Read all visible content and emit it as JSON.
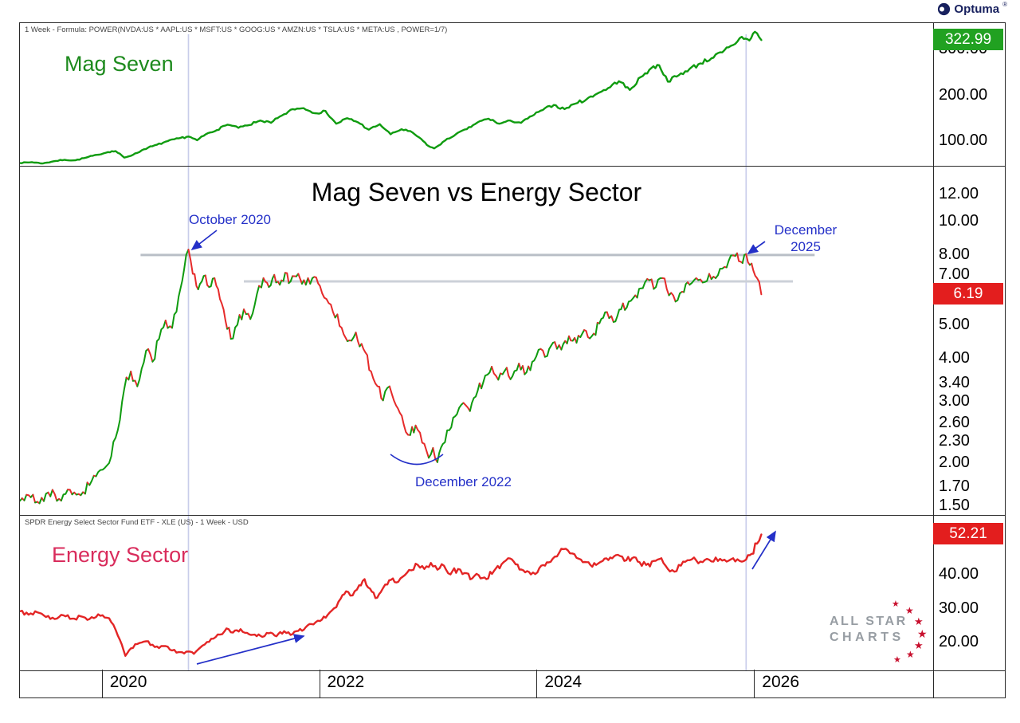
{
  "header": {
    "optuma_logo": "Optuma",
    "registered": "®"
  },
  "panels": {
    "mag7_label": "Mag Seven",
    "ratio_title": "Mag Seven vs Energy Sector",
    "energy_label": "Energy Sector",
    "mag7_header": "1 Week - Formula: POWER(NVDA:US * AAPL:US * MSFT:US * GOOG:US * AMZN:US * TSLA:US * META:US , POWER=1/7)",
    "xle_header": "SPDR Energy Select Sector Fund ETF - XLE (US) - 1 Week - USD"
  },
  "badges": {
    "mag7": "322.99",
    "ratio": "6.19",
    "xle": "52.21"
  },
  "annotations": {
    "october_2020": "October 2020",
    "december_2025": "December 2025",
    "december_2022": "December 2022"
  },
  "watermark": {
    "line1": "ALL STAR",
    "line2": "CHARTS"
  },
  "colors": {
    "mag7_line": "#0f9b0f",
    "xle_line": "#e32525",
    "up": "#0f9b0f",
    "down": "#e62a2a",
    "annotation": "#2430c8",
    "grid": "#c9cdea",
    "badge_green": "#21a121",
    "badge_red": "#e31e1e",
    "title_green": "#1d8a1d",
    "title_pink": "#d92c5c",
    "star_red": "#c8102e"
  },
  "x_axis": {
    "ticks": [
      2020,
      2022,
      2024,
      2026
    ],
    "labels": [
      "2020",
      "2022",
      "2024",
      "2026"
    ]
  },
  "gridlines": [
    2020.79,
    2025.92
  ],
  "chart_data": [
    {
      "type": "line",
      "name": "mag-seven",
      "title": "Mag Seven",
      "scale": "linear",
      "xlim": [
        2019.24,
        2027.64
      ],
      "ylim": [
        48,
        360
      ],
      "color": "#0f9b0f",
      "last_value": 322.99,
      "yticks": [
        {
          "v": 300,
          "label": "300.00"
        },
        {
          "v": 200,
          "label": "200.00"
        },
        {
          "v": 100,
          "label": "100.00"
        }
      ],
      "points": [
        [
          2019.24,
          54
        ],
        [
          2019.35,
          56
        ],
        [
          2019.45,
          53
        ],
        [
          2019.55,
          58
        ],
        [
          2019.65,
          61
        ],
        [
          2019.75,
          60
        ],
        [
          2019.85,
          66
        ],
        [
          2019.95,
          72
        ],
        [
          2020.05,
          78
        ],
        [
          2020.12,
          80
        ],
        [
          2020.2,
          66
        ],
        [
          2020.28,
          72
        ],
        [
          2020.38,
          84
        ],
        [
          2020.5,
          94
        ],
        [
          2020.6,
          102
        ],
        [
          2020.7,
          108
        ],
        [
          2020.79,
          112
        ],
        [
          2020.87,
          104
        ],
        [
          2020.95,
          117
        ],
        [
          2021.05,
          126
        ],
        [
          2021.15,
          138
        ],
        [
          2021.25,
          131
        ],
        [
          2021.35,
          137
        ],
        [
          2021.45,
          147
        ],
        [
          2021.55,
          142
        ],
        [
          2021.65,
          158
        ],
        [
          2021.75,
          172
        ],
        [
          2021.85,
          174
        ],
        [
          2021.95,
          163
        ],
        [
          2022.05,
          168
        ],
        [
          2022.15,
          140
        ],
        [
          2022.25,
          152
        ],
        [
          2022.35,
          143
        ],
        [
          2022.45,
          127
        ],
        [
          2022.55,
          139
        ],
        [
          2022.65,
          117
        ],
        [
          2022.75,
          128
        ],
        [
          2022.85,
          121
        ],
        [
          2022.95,
          102
        ],
        [
          2023.0,
          91
        ],
        [
          2023.05,
          86
        ],
        [
          2023.15,
          103
        ],
        [
          2023.25,
          117
        ],
        [
          2023.35,
          128
        ],
        [
          2023.45,
          143
        ],
        [
          2023.55,
          151
        ],
        [
          2023.65,
          140
        ],
        [
          2023.75,
          147
        ],
        [
          2023.85,
          142
        ],
        [
          2023.95,
          157
        ],
        [
          2024.05,
          170
        ],
        [
          2024.15,
          181
        ],
        [
          2024.25,
          172
        ],
        [
          2024.35,
          184
        ],
        [
          2024.45,
          193
        ],
        [
          2024.55,
          206
        ],
        [
          2024.65,
          218
        ],
        [
          2024.75,
          233
        ],
        [
          2024.85,
          214
        ],
        [
          2024.95,
          242
        ],
        [
          2025.05,
          262
        ],
        [
          2025.12,
          268
        ],
        [
          2025.2,
          232
        ],
        [
          2025.3,
          246
        ],
        [
          2025.4,
          260
        ],
        [
          2025.5,
          272
        ],
        [
          2025.6,
          283
        ],
        [
          2025.7,
          296
        ],
        [
          2025.8,
          312
        ],
        [
          2025.88,
          330
        ],
        [
          2025.95,
          322
        ],
        [
          2026.0,
          341
        ],
        [
          2026.06,
          322.99
        ]
      ]
    },
    {
      "type": "line",
      "name": "mag-seven-vs-energy-ratio",
      "title": "Mag Seven vs Energy Sector",
      "scale": "log",
      "mode": "updown",
      "xlim": [
        2019.24,
        2027.64
      ],
      "ylim": [
        1.42,
        14.6
      ],
      "colors": {
        "up": "#0f9b0f",
        "down": "#e62a2a"
      },
      "last_value": 6.19,
      "yticks": [
        {
          "v": 12,
          "label": "12.00"
        },
        {
          "v": 10,
          "label": "10.00"
        },
        {
          "v": 8,
          "label": "8.00"
        },
        {
          "v": 7,
          "label": "7.00"
        },
        {
          "v": 6,
          "label": "6.00"
        },
        {
          "v": 5,
          "label": "5.00"
        },
        {
          "v": 4,
          "label": "4.00"
        },
        {
          "v": 3.4,
          "label": "3.40"
        },
        {
          "v": 3,
          "label": "3.00"
        },
        {
          "v": 2.6,
          "label": "2.60"
        },
        {
          "v": 2.3,
          "label": "2.30"
        },
        {
          "v": 2,
          "label": "2.00"
        },
        {
          "v": 1.7,
          "label": "1.70"
        },
        {
          "v": 1.5,
          "label": "1.50"
        }
      ],
      "hlines": [
        {
          "value": 8.05,
          "x1": 2020.35,
          "x2": 2026.55,
          "color": "#b9bfc7",
          "width": 3
        },
        {
          "value": 6.75,
          "x1": 2021.3,
          "x2": 2026.35,
          "color": "#ccd1d8",
          "width": 3
        }
      ],
      "points": [
        [
          2019.24,
          1.56
        ],
        [
          2019.32,
          1.62
        ],
        [
          2019.4,
          1.55
        ],
        [
          2019.5,
          1.65
        ],
        [
          2019.6,
          1.58
        ],
        [
          2019.7,
          1.68
        ],
        [
          2019.8,
          1.62
        ],
        [
          2019.9,
          1.78
        ],
        [
          2020.0,
          1.92
        ],
        [
          2020.08,
          2.1
        ],
        [
          2020.14,
          2.5
        ],
        [
          2020.2,
          3.3
        ],
        [
          2020.26,
          3.7
        ],
        [
          2020.32,
          3.35
        ],
        [
          2020.4,
          4.25
        ],
        [
          2020.46,
          3.95
        ],
        [
          2020.52,
          4.6
        ],
        [
          2020.58,
          5.2
        ],
        [
          2020.64,
          4.95
        ],
        [
          2020.7,
          6.1
        ],
        [
          2020.75,
          7.3
        ],
        [
          2020.79,
          8.35
        ],
        [
          2020.83,
          7.1
        ],
        [
          2020.88,
          6.4
        ],
        [
          2020.93,
          7.0
        ],
        [
          2020.98,
          6.5
        ],
        [
          2021.03,
          6.9
        ],
        [
          2021.08,
          6.0
        ],
        [
          2021.13,
          5.2
        ],
        [
          2021.18,
          4.6
        ],
        [
          2021.24,
          5.05
        ],
        [
          2021.3,
          5.6
        ],
        [
          2021.36,
          5.25
        ],
        [
          2021.42,
          6.2
        ],
        [
          2021.48,
          6.9
        ],
        [
          2021.53,
          6.5
        ],
        [
          2021.58,
          7.05
        ],
        [
          2021.63,
          6.6
        ],
        [
          2021.68,
          7.15
        ],
        [
          2021.73,
          6.75
        ],
        [
          2021.8,
          7.1
        ],
        [
          2021.87,
          6.6
        ],
        [
          2021.93,
          6.9
        ],
        [
          2022.0,
          6.55
        ],
        [
          2022.06,
          6.0
        ],
        [
          2022.12,
          5.5
        ],
        [
          2022.2,
          4.95
        ],
        [
          2022.27,
          4.55
        ],
        [
          2022.33,
          4.8
        ],
        [
          2022.4,
          4.3
        ],
        [
          2022.47,
          3.7
        ],
        [
          2022.53,
          3.35
        ],
        [
          2022.58,
          3.05
        ],
        [
          2022.64,
          3.35
        ],
        [
          2022.7,
          2.95
        ],
        [
          2022.77,
          2.6
        ],
        [
          2022.83,
          2.42
        ],
        [
          2022.88,
          2.58
        ],
        [
          2022.94,
          2.3
        ],
        [
          2023.0,
          2.08
        ],
        [
          2023.04,
          2.22
        ],
        [
          2023.08,
          2.02
        ],
        [
          2023.13,
          2.28
        ],
        [
          2023.19,
          2.5
        ],
        [
          2023.26,
          2.78
        ],
        [
          2023.32,
          3.0
        ],
        [
          2023.38,
          2.84
        ],
        [
          2023.45,
          3.25
        ],
        [
          2023.52,
          3.6
        ],
        [
          2023.58,
          3.82
        ],
        [
          2023.64,
          3.5
        ],
        [
          2023.7,
          3.72
        ],
        [
          2023.77,
          3.58
        ],
        [
          2023.83,
          3.9
        ],
        [
          2023.9,
          3.68
        ],
        [
          2023.97,
          3.98
        ],
        [
          2024.03,
          4.3
        ],
        [
          2024.09,
          4.1
        ],
        [
          2024.16,
          4.5
        ],
        [
          2024.22,
          4.28
        ],
        [
          2024.29,
          4.68
        ],
        [
          2024.36,
          4.48
        ],
        [
          2024.43,
          4.88
        ],
        [
          2024.5,
          4.68
        ],
        [
          2024.57,
          5.1
        ],
        [
          2024.64,
          5.5
        ],
        [
          2024.7,
          5.15
        ],
        [
          2024.77,
          5.6
        ],
        [
          2024.84,
          5.9
        ],
        [
          2024.9,
          6.15
        ],
        [
          2024.97,
          6.45
        ],
        [
          2025.03,
          6.8
        ],
        [
          2025.09,
          6.5
        ],
        [
          2025.15,
          6.9
        ],
        [
          2025.21,
          6.15
        ],
        [
          2025.27,
          5.9
        ],
        [
          2025.33,
          6.3
        ],
        [
          2025.4,
          6.6
        ],
        [
          2025.46,
          6.9
        ],
        [
          2025.52,
          6.7
        ],
        [
          2025.58,
          7.1
        ],
        [
          2025.64,
          6.9
        ],
        [
          2025.7,
          7.35
        ],
        [
          2025.76,
          7.75
        ],
        [
          2025.82,
          8.0
        ],
        [
          2025.87,
          7.7
        ],
        [
          2025.92,
          8.1
        ],
        [
          2025.97,
          7.6
        ],
        [
          2026.02,
          6.9
        ],
        [
          2026.06,
          6.19
        ]
      ]
    },
    {
      "type": "line",
      "name": "energy-sector-xle",
      "title": "Energy Sector (XLE)",
      "scale": "linear",
      "xlim": [
        2019.24,
        2027.64
      ],
      "ylim": [
        12,
        58
      ],
      "color": "#e32525",
      "last_value": 52.21,
      "yticks": [
        {
          "v": 40,
          "label": "40.00"
        },
        {
          "v": 30,
          "label": "30.00"
        },
        {
          "v": 20,
          "label": "20.00"
        }
      ],
      "points": [
        [
          2019.24,
          29.5
        ],
        [
          2019.32,
          28.5
        ],
        [
          2019.4,
          29.2
        ],
        [
          2019.48,
          27.8
        ],
        [
          2019.56,
          27.2
        ],
        [
          2019.64,
          28.3
        ],
        [
          2019.72,
          27.3
        ],
        [
          2019.8,
          28.0
        ],
        [
          2019.88,
          27.2
        ],
        [
          2019.96,
          28.6
        ],
        [
          2020.04,
          27.6
        ],
        [
          2020.1,
          25.5
        ],
        [
          2020.16,
          21.0
        ],
        [
          2020.21,
          16.3
        ],
        [
          2020.26,
          18.5
        ],
        [
          2020.32,
          19.8
        ],
        [
          2020.4,
          20.6
        ],
        [
          2020.46,
          19.6
        ],
        [
          2020.52,
          18.6
        ],
        [
          2020.58,
          19.2
        ],
        [
          2020.64,
          17.9
        ],
        [
          2020.7,
          17.4
        ],
        [
          2020.75,
          17.0
        ],
        [
          2020.79,
          17.6
        ],
        [
          2020.84,
          16.9
        ],
        [
          2020.9,
          18.8
        ],
        [
          2020.96,
          20.4
        ],
        [
          2021.02,
          21.4
        ],
        [
          2021.08,
          22.6
        ],
        [
          2021.14,
          24.4
        ],
        [
          2021.2,
          23.2
        ],
        [
          2021.27,
          24.2
        ],
        [
          2021.33,
          23.1
        ],
        [
          2021.4,
          22.6
        ],
        [
          2021.47,
          21.9
        ],
        [
          2021.53,
          23.0
        ],
        [
          2021.6,
          22.1
        ],
        [
          2021.67,
          23.6
        ],
        [
          2021.73,
          22.5
        ],
        [
          2021.8,
          23.7
        ],
        [
          2021.87,
          24.8
        ],
        [
          2021.94,
          25.6
        ],
        [
          2022.0,
          26.6
        ],
        [
          2022.07,
          28.4
        ],
        [
          2022.13,
          30.4
        ],
        [
          2022.19,
          33.2
        ],
        [
          2022.24,
          35.4
        ],
        [
          2022.3,
          34.2
        ],
        [
          2022.36,
          37.2
        ],
        [
          2022.41,
          39.0
        ],
        [
          2022.46,
          36.2
        ],
        [
          2022.51,
          33.4
        ],
        [
          2022.56,
          35.2
        ],
        [
          2022.62,
          37.4
        ],
        [
          2022.67,
          39.2
        ],
        [
          2022.72,
          38.2
        ],
        [
          2022.78,
          40.2
        ],
        [
          2022.84,
          41.6
        ],
        [
          2022.9,
          43.2
        ],
        [
          2022.96,
          42.0
        ],
        [
          2023.02,
          43.8
        ],
        [
          2023.08,
          41.8
        ],
        [
          2023.14,
          43.0
        ],
        [
          2023.2,
          40.4
        ],
        [
          2023.27,
          42.0
        ],
        [
          2023.33,
          40.8
        ],
        [
          2023.4,
          39.2
        ],
        [
          2023.46,
          40.2
        ],
        [
          2023.53,
          39.0
        ],
        [
          2023.6,
          41.4
        ],
        [
          2023.67,
          43.4
        ],
        [
          2023.73,
          45.2
        ],
        [
          2023.8,
          43.4
        ],
        [
          2023.87,
          41.6
        ],
        [
          2023.94,
          40.4
        ],
        [
          2024.0,
          41.0
        ],
        [
          2024.07,
          43.0
        ],
        [
          2024.14,
          45.0
        ],
        [
          2024.2,
          46.8
        ],
        [
          2024.26,
          48.0
        ],
        [
          2024.32,
          46.6
        ],
        [
          2024.4,
          44.8
        ],
        [
          2024.47,
          44.0
        ],
        [
          2024.54,
          43.2
        ],
        [
          2024.6,
          44.4
        ],
        [
          2024.67,
          45.4
        ],
        [
          2024.74,
          46.2
        ],
        [
          2024.8,
          44.4
        ],
        [
          2024.87,
          45.2
        ],
        [
          2024.94,
          44.0
        ],
        [
          2025.0,
          43.2
        ],
        [
          2025.07,
          44.4
        ],
        [
          2025.14,
          45.2
        ],
        [
          2025.2,
          42.0
        ],
        [
          2025.26,
          41.2
        ],
        [
          2025.32,
          43.0
        ],
        [
          2025.38,
          44.6
        ],
        [
          2025.44,
          45.4
        ],
        [
          2025.5,
          44.2
        ],
        [
          2025.56,
          45.0
        ],
        [
          2025.62,
          44.2
        ],
        [
          2025.68,
          45.0
        ],
        [
          2025.74,
          44.2
        ],
        [
          2025.8,
          45.2
        ],
        [
          2025.86,
          44.4
        ],
        [
          2025.92,
          44.8
        ],
        [
          2025.97,
          46.5
        ],
        [
          2026.02,
          49.5
        ],
        [
          2026.06,
          52.21
        ]
      ]
    }
  ]
}
